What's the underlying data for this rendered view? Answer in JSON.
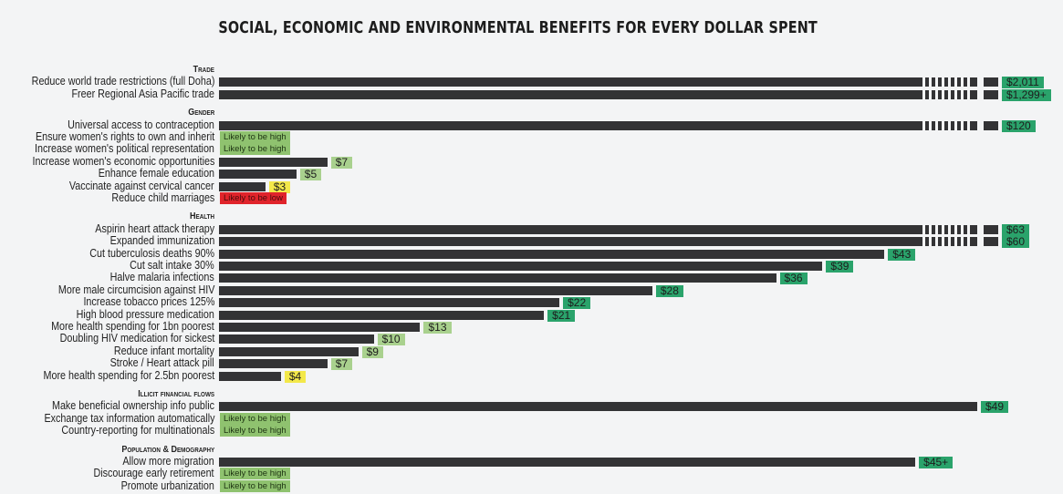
{
  "title": "SOCIAL, ECONOMIC AND ENVIRONMENTAL BENEFITS FOR EVERY DOLLAR SPENT",
  "chart_data": {
    "type": "bar",
    "orientation": "horizontal",
    "title": "SOCIAL, ECONOMIC AND ENVIRONMENTAL BENEFITS FOR EVERY DOLLAR SPENT",
    "xlabel": "",
    "ylabel": "",
    "xlim": [
      0,
      45
    ],
    "grid": false,
    "colors": {
      "bar": "#333335",
      "label_dark": "#2aa36b",
      "label_light": "#a9d18e",
      "label_yellow": "#f3e84a",
      "status_high": "#8fc26f",
      "status_low": "#e0242b"
    },
    "groups": [
      {
        "name": "Trade",
        "items": [
          {
            "label": "Reduce world trade restrictions (full Doha)",
            "value": 2011,
            "display": "$2,011",
            "truncated": true,
            "color": "dark"
          },
          {
            "label": "Freer Regional Asia Pacific trade",
            "value": 1299,
            "display": "$1,299+",
            "truncated": true,
            "color": "dark"
          }
        ]
      },
      {
        "name": "Gender",
        "items": [
          {
            "label": "Universal access to contraception",
            "value": 120,
            "display": "$120",
            "truncated": true,
            "color": "dark"
          },
          {
            "label": "Ensure women's rights to own and inherit",
            "status": "Likely to be high",
            "status_type": "high"
          },
          {
            "label": "Increase women's political representation",
            "status": "Likely to be high",
            "status_type": "high"
          },
          {
            "label": "Increase women's economic opportunities",
            "value": 7,
            "display": "$7",
            "color": "light"
          },
          {
            "label": "Enhance female education",
            "value": 5,
            "display": "$5",
            "color": "light"
          },
          {
            "label": "Vaccinate against cervical cancer",
            "value": 3,
            "display": "$3",
            "color": "yellow"
          },
          {
            "label": "Reduce child marriages",
            "status": "Likely to be low",
            "status_type": "low"
          }
        ]
      },
      {
        "name": "Health",
        "items": [
          {
            "label": "Aspirin heart attack therapy",
            "value": 63,
            "display": "$63",
            "truncated": true,
            "color": "dark"
          },
          {
            "label": "Expanded immunization",
            "value": 60,
            "display": "$60",
            "truncated": true,
            "color": "dark"
          },
          {
            "label": "Cut tuberculosis deaths 90%",
            "value": 43,
            "display": "$43",
            "color": "dark"
          },
          {
            "label": "Cut salt intake 30%",
            "value": 39,
            "display": "$39",
            "color": "dark"
          },
          {
            "label": "Halve malaria infections",
            "value": 36,
            "display": "$36",
            "color": "dark"
          },
          {
            "label": "More male circumcision against HIV",
            "value": 28,
            "display": "$28",
            "color": "dark"
          },
          {
            "label": "Increase tobacco prices 125%",
            "value": 22,
            "display": "$22",
            "color": "dark"
          },
          {
            "label": "High blood pressure medication",
            "value": 21,
            "display": "$21",
            "color": "dark"
          },
          {
            "label": "More health spending for 1bn poorest",
            "value": 13,
            "display": "$13",
            "color": "light"
          },
          {
            "label": "Doubling HIV medication for sickest",
            "value": 10,
            "display": "$10",
            "color": "light"
          },
          {
            "label": "Reduce infant mortality",
            "value": 9,
            "display": "$9",
            "color": "light"
          },
          {
            "label": "Stroke / Heart attack pill",
            "value": 7,
            "display": "$7",
            "color": "light"
          },
          {
            "label": "More health spending for 2.5bn poorest",
            "value": 4,
            "display": "$4",
            "color": "yellow"
          }
        ]
      },
      {
        "name": "Illicit financial flows",
        "items": [
          {
            "label": "Make beneficial ownership info public",
            "value": 49,
            "display": "$49",
            "color": "dark"
          },
          {
            "label": "Exchange tax information automatically",
            "status": "Likely to be high",
            "status_type": "high"
          },
          {
            "label": "Country-reporting for multinationals",
            "status": "Likely to be high",
            "status_type": "high"
          }
        ]
      },
      {
        "name": "Population & Demography",
        "items": [
          {
            "label": "Allow more migration",
            "value": 45,
            "display": "$45+",
            "color": "dark"
          },
          {
            "label": "Discourage early retirement",
            "status": "Likely to be high",
            "status_type": "high"
          },
          {
            "label": "Promote urbanization",
            "status": "Likely to be high",
            "status_type": "high"
          }
        ]
      }
    ]
  }
}
